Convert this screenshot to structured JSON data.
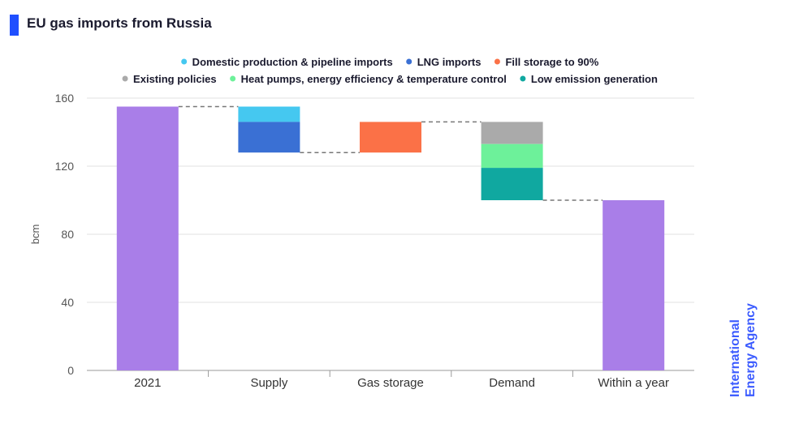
{
  "header": {
    "title": "EU gas imports from Russia",
    "accent_color": "#1f4fff"
  },
  "watermark": {
    "line1": "International",
    "line2": "Energy Agency",
    "color": "#3b5bff"
  },
  "chart_data": {
    "type": "bar",
    "subtype": "waterfall",
    "title": "EU gas imports from Russia",
    "xlabel": "",
    "ylabel": "bcm",
    "ylim": [
      0,
      160
    ],
    "yticks": [
      0,
      40,
      80,
      120,
      160
    ],
    "grid": true,
    "legend_position": "top",
    "categories": [
      "2021",
      "Supply",
      "Gas storage",
      "Demand",
      "Within a year"
    ],
    "totals": [
      {
        "category": "2021",
        "value": 155,
        "color": "#a97ee8"
      },
      {
        "category": "Within a year",
        "value": 100,
        "color": "#a97ee8"
      }
    ],
    "series": [
      {
        "name": "Domestic production & pipeline imports",
        "color": "#45c8f0",
        "category": "Supply",
        "range": [
          146,
          155
        ]
      },
      {
        "name": "LNG imports",
        "color": "#3a70d4",
        "category": "Supply",
        "range": [
          128,
          146
        ]
      },
      {
        "name": "Fill storage to 90%",
        "color": "#fb7147",
        "category": "Gas storage",
        "range": [
          128,
          146
        ]
      },
      {
        "name": "Existing policies",
        "color": "#aaaaaa",
        "category": "Demand",
        "range": [
          133,
          146
        ]
      },
      {
        "name": "Heat pumps, energy efficiency & temperature control",
        "color": "#6df19a",
        "category": "Demand",
        "range": [
          119,
          133
        ]
      },
      {
        "name": "Low emission generation",
        "color": "#10a8a0",
        "category": "Demand",
        "range": [
          100,
          119
        ]
      }
    ],
    "connectors": [
      {
        "from": "2021",
        "to": "Supply",
        "value": 155
      },
      {
        "from": "Supply",
        "to": "Gas storage",
        "value": 128
      },
      {
        "from": "Gas storage",
        "to": "Demand",
        "value": 146
      },
      {
        "from": "Demand",
        "to": "Within a year",
        "value": 100
      }
    ],
    "legend_rows": [
      [
        "Domestic production & pipeline imports",
        "LNG imports",
        "Fill storage to 90%"
      ],
      [
        "Existing policies",
        "Heat pumps, energy efficiency & temperature control",
        "Low emission generation"
      ]
    ]
  }
}
